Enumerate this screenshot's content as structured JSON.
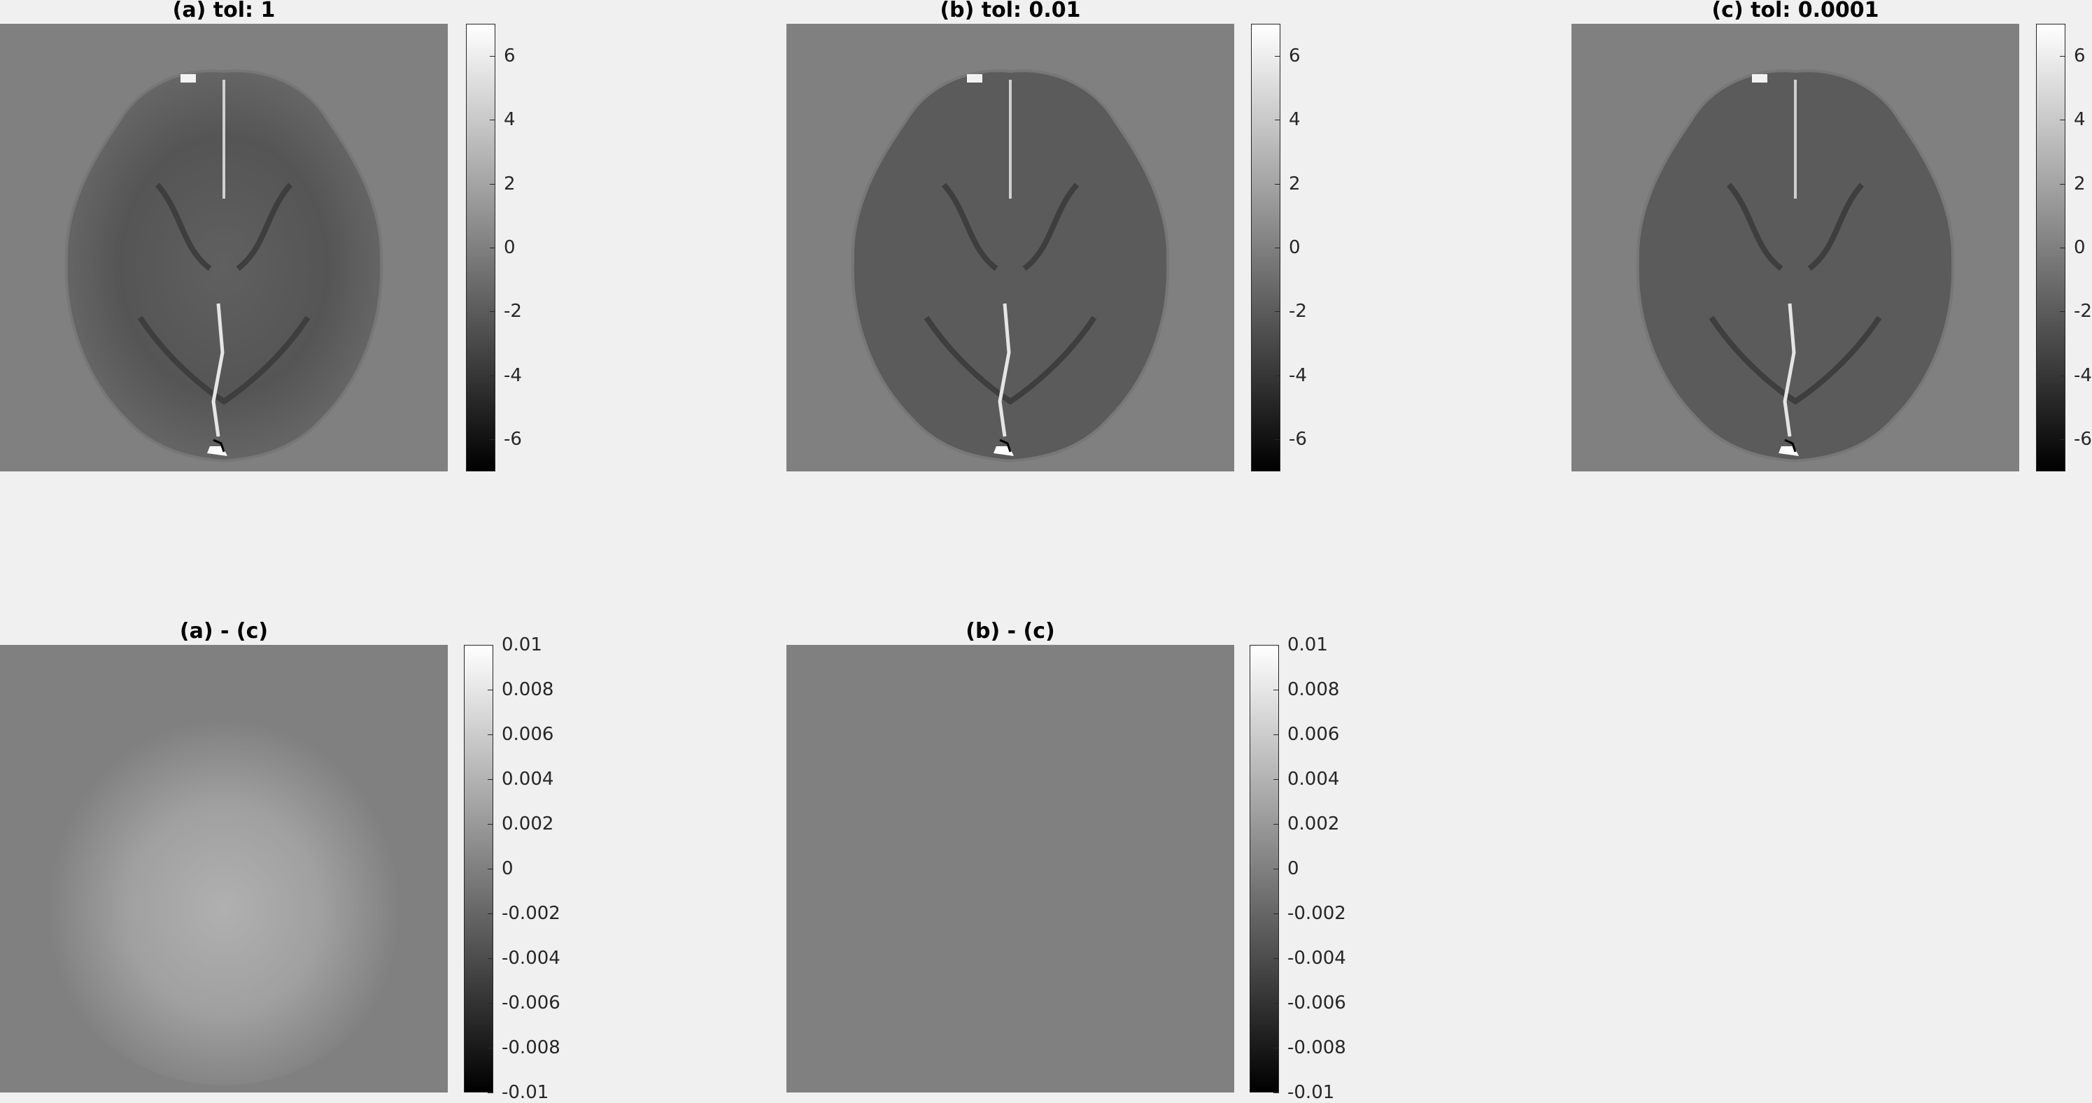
{
  "figure": {
    "top_row": [
      {
        "id": "a",
        "title": "(a) tol: 1"
      },
      {
        "id": "b",
        "title": "(b) tol: 0.01"
      },
      {
        "id": "c",
        "title": "(c) tol: 0.0001"
      }
    ],
    "bottom_row": [
      {
        "id": "a-c",
        "title": "(a) - (c)"
      },
      {
        "id": "b-c",
        "title": "(b) - (c)"
      }
    ]
  },
  "colorbars": {
    "top_ticks": [
      "6",
      "4",
      "2",
      "0",
      "-2",
      "-4",
      "-6"
    ],
    "bottom_ticks": [
      "0.01",
      "0.008",
      "0.006",
      "0.004",
      "0.002",
      "0",
      "-0.002",
      "-0.004",
      "-0.006",
      "-0.008",
      "-0.01"
    ]
  },
  "colors": {
    "background": "#f0f0f0",
    "image_background": "#808080",
    "colormap": "gray"
  }
}
